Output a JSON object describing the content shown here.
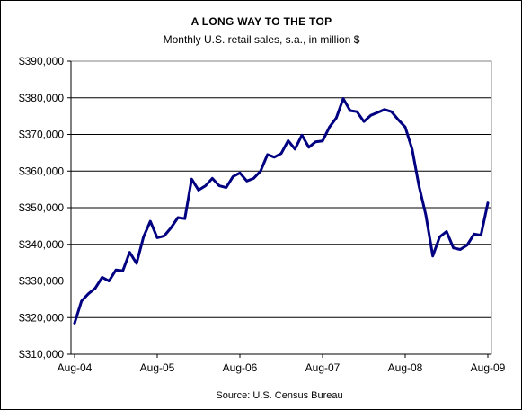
{
  "chart_data": {
    "type": "line",
    "title": "A LONG WAY TO THE TOP",
    "subtitle": "Monthly U.S. retail sales, s.a., in million $",
    "source": "Source: U.S. Census Bureau",
    "xlabel": "",
    "ylabel": "",
    "ylim": [
      310000,
      390000
    ],
    "yticks": [
      310000,
      320000,
      330000,
      340000,
      350000,
      360000,
      370000,
      380000,
      390000
    ],
    "ytick_labels": [
      "$310,000",
      "$320,000",
      "$330,000",
      "$340,000",
      "$350,000",
      "$360,000",
      "$370,000",
      "$380,000",
      "$390,000"
    ],
    "x_tick_labels": [
      "Aug-04",
      "Aug-05",
      "Aug-06",
      "Aug-07",
      "Aug-08",
      "Aug-09"
    ],
    "x_start": "Aug-04",
    "x_end": "Aug-09",
    "grid": true,
    "legend": "none",
    "line_color": "#000080",
    "series": [
      {
        "values": [
          318500,
          324500,
          326500,
          328000,
          331000,
          330000,
          333000,
          332800,
          337800,
          334800,
          342000,
          346300,
          341800,
          342300,
          344500,
          347300,
          347000,
          357800,
          354800,
          356000,
          358000,
          356000,
          355500,
          358500,
          359500,
          357300,
          358000,
          360000,
          364500,
          363800,
          364800,
          368300,
          366000,
          369800,
          366500,
          368000,
          368200,
          372000,
          374500,
          379800,
          376500,
          376200,
          373500,
          375200,
          376000,
          376800,
          376200,
          374000,
          372000,
          366000,
          356000,
          348000,
          336800,
          342000,
          343500,
          339000,
          338600,
          339800,
          342800,
          342500,
          351300
        ]
      }
    ]
  }
}
